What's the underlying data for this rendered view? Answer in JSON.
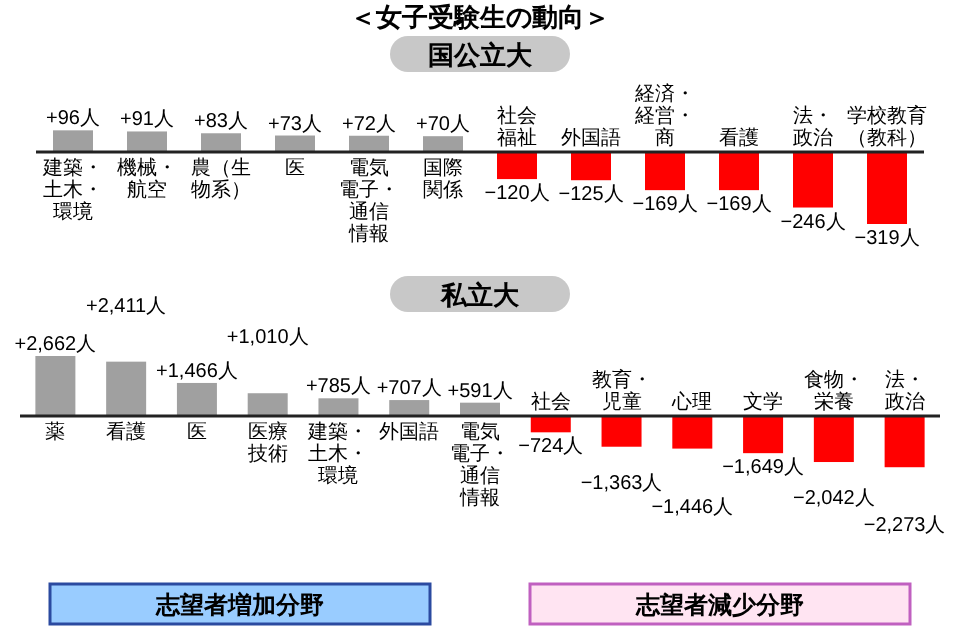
{
  "chart_data": [
    {
      "type": "bar",
      "title": "＜女子受験生の動向＞",
      "subtitle": "国公立大",
      "categories": [
        "建築・土木・環境",
        "機械・航空",
        "農（生物系）",
        "医",
        "電気電子・通信情報",
        "国際関係",
        "社会福祉",
        "外国語",
        "経済・経営・商",
        "看護",
        "法・政治",
        "学校教育（教科）"
      ],
      "values": [
        96,
        91,
        83,
        73,
        72,
        70,
        -120,
        -125,
        -169,
        -169,
        -246,
        -319
      ],
      "value_labels": [
        "+96人",
        "+91人",
        "+83人",
        "+73人",
        "+72人",
        "+70人",
        "−120人",
        "−125人",
        "−169人",
        "−169人",
        "−246人",
        "−319人"
      ],
      "colors": [
        "#a0a0a0",
        "#a0a0a0",
        "#a0a0a0",
        "#a0a0a0",
        "#a0a0a0",
        "#a0a0a0",
        "#ff0000",
        "#ff0000",
        "#ff0000",
        "#ff0000",
        "#ff0000",
        "#ff0000"
      ]
    },
    {
      "type": "bar",
      "title": "私立大",
      "categories": [
        "薬",
        "看護",
        "医",
        "医療技術",
        "建築・土木・環境",
        "外国語",
        "電気電子・通信情報",
        "社会",
        "教育・児童",
        "心理",
        "文学",
        "食物・栄養",
        "法・政治"
      ],
      "values": [
        2662,
        2411,
        1466,
        1010,
        785,
        707,
        591,
        -724,
        -1363,
        -1446,
        -1649,
        -2042,
        -2273
      ],
      "value_labels": [
        "+2,662人",
        "+2,411人",
        "+1,466人",
        "+1,010人",
        "+785人",
        "+707人",
        "+591人",
        "−724人",
        "−1,363人",
        "−1,446人",
        "−1,649人",
        "−2,042人",
        "−2,273人"
      ],
      "colors": [
        "#a0a0a0",
        "#a0a0a0",
        "#a0a0a0",
        "#a0a0a0",
        "#a0a0a0",
        "#a0a0a0",
        "#a0a0a0",
        "#ff0000",
        "#ff0000",
        "#ff0000",
        "#ff0000",
        "#ff0000",
        "#ff0000"
      ],
      "annotations": [
        "志望者増加分野",
        "志望者減少分野"
      ]
    }
  ]
}
